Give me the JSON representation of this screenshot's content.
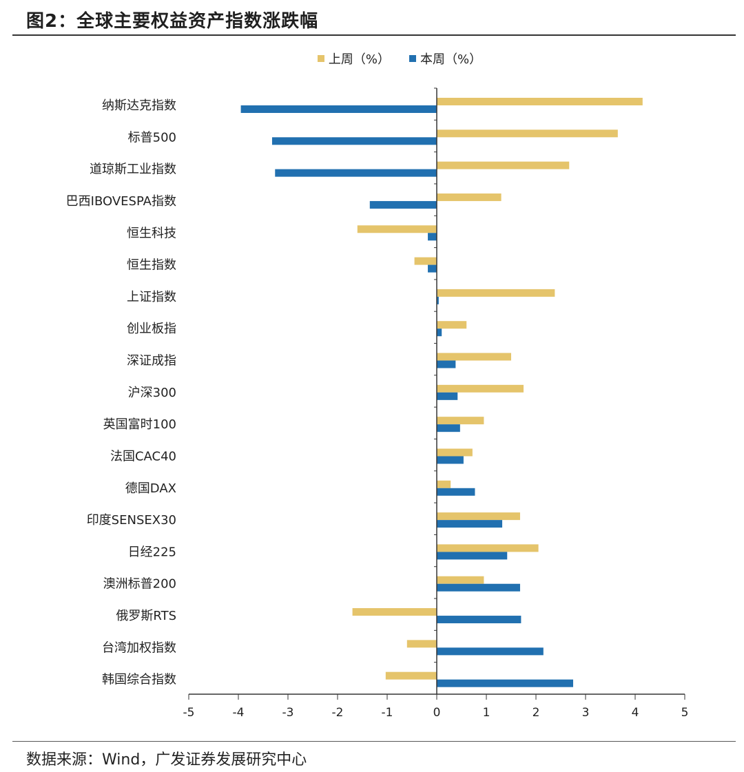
{
  "header": {
    "title": "图2：全球主要权益资产指数涨跌幅"
  },
  "footer": {
    "source": "数据来源：Wind，广发证券发展研究中心"
  },
  "colors": {
    "last_week": "#e5c46b",
    "this_week": "#2170b0",
    "axis": "#333333"
  },
  "chart_data": {
    "type": "bar",
    "orientation": "horizontal",
    "title": "图2：全球主要权益资产指数涨跌幅",
    "xlabel": "",
    "ylabel": "",
    "xlim": [
      -5,
      5
    ],
    "ticks": [
      -5,
      -4,
      -3,
      -2,
      -1,
      0,
      1,
      2,
      3,
      4,
      5
    ],
    "legend_position": "top-center",
    "categories": [
      "纳斯达克指数",
      "标普500",
      "道琼斯工业指数",
      "巴西IBOVESPA指数",
      "恒生科技",
      "恒生指数",
      "上证指数",
      "创业板指",
      "深证成指",
      "沪深300",
      "英国富时100",
      "法国CAC40",
      "德国DAX",
      "印度SENSEX30",
      "日经225",
      "澳洲标普200",
      "俄罗斯RTS",
      "台湾加权指数",
      "韩国综合指数"
    ],
    "series": [
      {
        "name": "上周（%）",
        "values": [
          4.15,
          3.65,
          2.67,
          1.3,
          -1.6,
          -0.45,
          2.38,
          0.6,
          1.5,
          1.75,
          0.95,
          0.72,
          0.28,
          1.68,
          2.05,
          0.95,
          -1.7,
          -0.6,
          -1.03
        ]
      },
      {
        "name": "本周（%）",
        "values": [
          -3.95,
          -3.32,
          -3.26,
          -1.35,
          -0.18,
          -0.18,
          0.04,
          0.1,
          0.38,
          0.42,
          0.47,
          0.54,
          0.77,
          1.32,
          1.42,
          1.68,
          1.7,
          2.15,
          2.75
        ]
      }
    ]
  }
}
